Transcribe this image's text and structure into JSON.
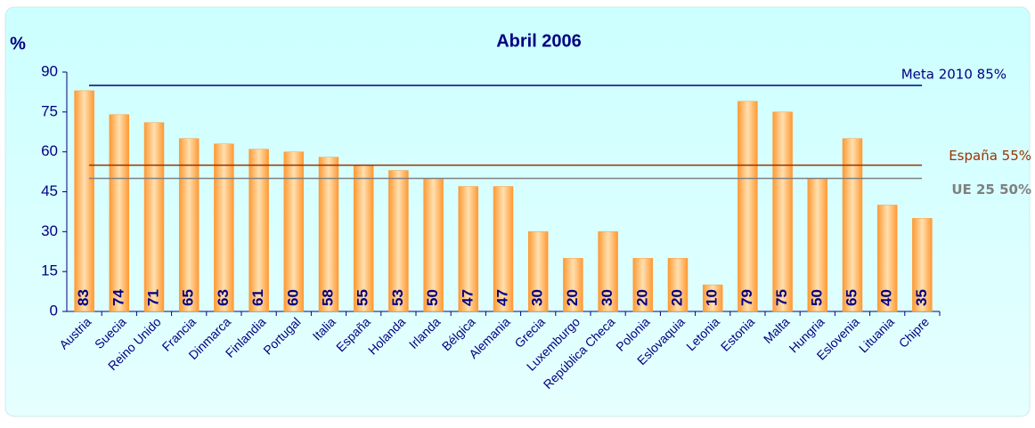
{
  "chart_data": {
    "type": "bar",
    "title": "Abril 2006",
    "y_label": "%",
    "categories": [
      "Austria",
      "Suecia",
      "Reino Unido",
      "Francia",
      "Dinmarca",
      "Finlandia",
      "Portugal",
      "Italia",
      "España",
      "Holanda",
      "Irlanda",
      "Bélgica",
      "Alemania",
      "Grecia",
      "Luxemburgo",
      "República Checa",
      "Polonia",
      "Eslovaquia",
      "Letonia",
      "Estonia",
      "Malta",
      "Hungria",
      "Eslovenia",
      "Lituania",
      "Chipre"
    ],
    "values": [
      83,
      74,
      71,
      65,
      63,
      61,
      60,
      58,
      55,
      53,
      50,
      47,
      47,
      30,
      20,
      30,
      20,
      20,
      10,
      79,
      75,
      50,
      65,
      40,
      35
    ],
    "color": "#ff9933",
    "ylim": [
      0,
      90
    ],
    "yticks": [
      0,
      15,
      30,
      45,
      60,
      75,
      90
    ],
    "reference_lines": [
      {
        "label": "Meta 2010 85%",
        "value": 85,
        "color": "#000080"
      },
      {
        "label": "España 55%",
        "value": 55,
        "color": "#993300"
      },
      {
        "label": "UE 25 50%",
        "value": 50,
        "color": "#808080"
      }
    ]
  }
}
